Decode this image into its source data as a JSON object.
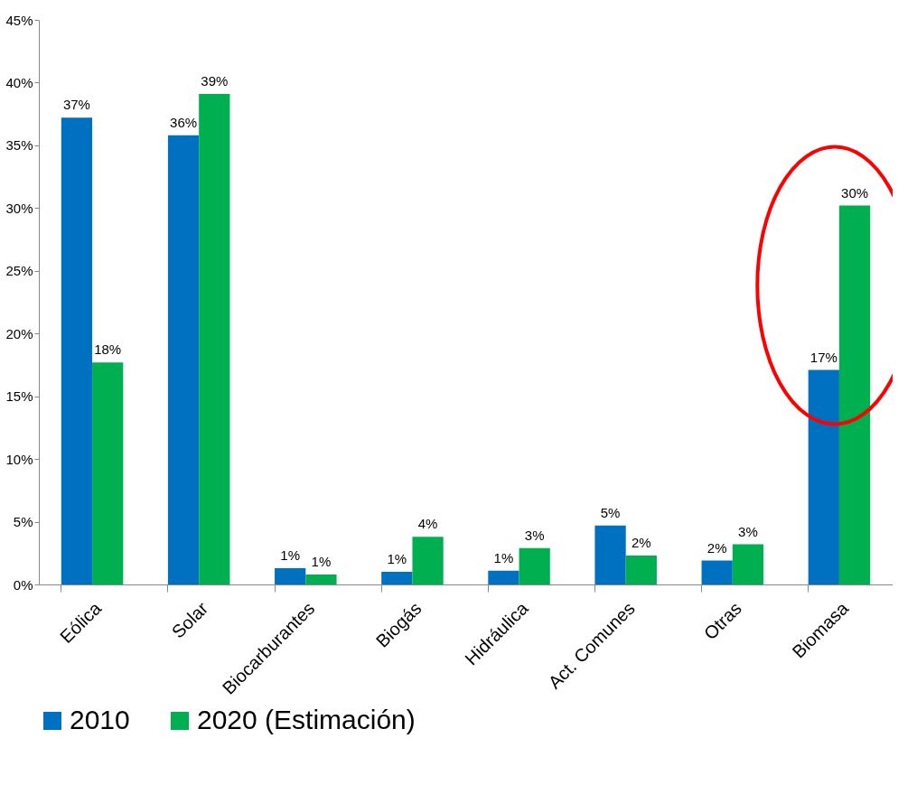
{
  "chart_data": {
    "type": "bar",
    "categories": [
      "Eólica",
      "Solar",
      "Biocarburantes",
      "Biogás",
      "Hidráulica",
      "Act. Comunes",
      "Otras",
      "Biomasa"
    ],
    "series": [
      {
        "name": "2010",
        "color": "#0070c0",
        "values": [
          37.2,
          35.8,
          1.3,
          1.0,
          1.1,
          4.7,
          1.9,
          17.1
        ],
        "value_labels": [
          "37%",
          "36%",
          "1%",
          "1%",
          "1%",
          "5%",
          "2%",
          "17%"
        ]
      },
      {
        "name": "2020 (Estimación)",
        "color": "#00b050",
        "values": [
          17.7,
          39.1,
          0.8,
          3.8,
          2.9,
          2.3,
          3.2,
          30.2
        ],
        "value_labels": [
          "18%",
          "39%",
          "1%",
          "4%",
          "3%",
          "2%",
          "3%",
          "30%"
        ]
      }
    ],
    "ylim": [
      0,
      45
    ],
    "yticks": [
      {
        "value": 0,
        "label": "0%"
      },
      {
        "value": 5,
        "label": "5%"
      },
      {
        "value": 10,
        "label": "10%"
      },
      {
        "value": 15,
        "label": "15%"
      },
      {
        "value": 20,
        "label": "20%"
      },
      {
        "value": 25,
        "label": "25%"
      },
      {
        "value": 30,
        "label": "30%"
      },
      {
        "value": 35,
        "label": "35%"
      },
      {
        "value": 40,
        "label": "40%"
      },
      {
        "value": 45,
        "label": "45%"
      }
    ],
    "grid": false,
    "legend": "bottom"
  }
}
